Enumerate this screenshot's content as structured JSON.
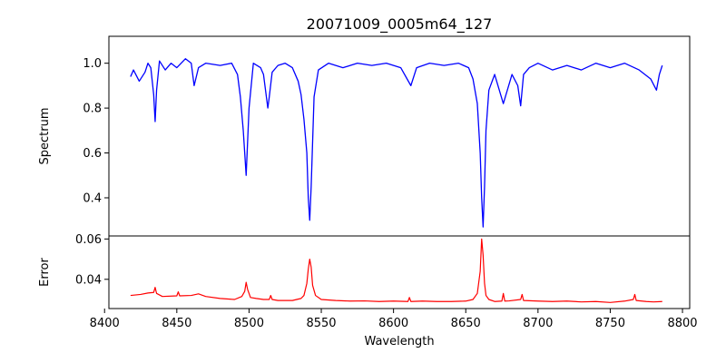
{
  "chart_data": [
    {
      "type": "line",
      "title": "20071009_0005m64_127",
      "xlabel": "",
      "ylabel": "Spectrum",
      "xlim": [
        8403,
        8805
      ],
      "ylim": [
        0.23,
        1.12
      ],
      "yticks": [
        0.4,
        0.6,
        0.8,
        1.0
      ],
      "yticklabels": [
        "0.4",
        "0.6",
        "0.8",
        "1.0"
      ],
      "grid": false,
      "series": [
        {
          "color": "#0000ff",
          "x": [
            8418,
            8420,
            8424,
            8428,
            8430,
            8432,
            8434,
            8435,
            8436,
            8438,
            8442,
            8446,
            8450,
            8456,
            8460,
            8462,
            8465,
            8470,
            8480,
            8488,
            8492,
            8494,
            8496,
            8498,
            8500,
            8503,
            8508,
            8510,
            8513,
            8514,
            8516,
            8520,
            8525,
            8530,
            8534,
            8536,
            8538,
            8540,
            8541,
            8542,
            8543,
            8545,
            8548,
            8555,
            8565,
            8575,
            8585,
            8595,
            8605,
            8612,
            8616,
            8625,
            8635,
            8645,
            8652,
            8655,
            8658,
            8660,
            8661,
            8662,
            8663,
            8664,
            8666,
            8670,
            8676,
            8682,
            8686,
            8688,
            8690,
            8694,
            8700,
            8710,
            8720,
            8730,
            8740,
            8750,
            8760,
            8770,
            8778,
            8782,
            8784,
            8786
          ],
          "values": [
            0.94,
            0.97,
            0.92,
            0.96,
            1.0,
            0.98,
            0.86,
            0.74,
            0.88,
            1.01,
            0.97,
            1.0,
            0.98,
            1.02,
            1.0,
            0.9,
            0.98,
            1.0,
            0.99,
            1.0,
            0.95,
            0.85,
            0.7,
            0.5,
            0.8,
            1.0,
            0.98,
            0.95,
            0.8,
            0.85,
            0.96,
            0.99,
            1.0,
            0.98,
            0.92,
            0.86,
            0.75,
            0.6,
            0.4,
            0.3,
            0.45,
            0.85,
            0.97,
            1.0,
            0.98,
            1.0,
            0.99,
            1.0,
            0.98,
            0.9,
            0.98,
            1.0,
            0.99,
            1.0,
            0.98,
            0.93,
            0.82,
            0.6,
            0.4,
            0.27,
            0.45,
            0.7,
            0.88,
            0.95,
            0.82,
            0.95,
            0.9,
            0.81,
            0.95,
            0.98,
            1.0,
            0.97,
            0.99,
            0.97,
            1.0,
            0.98,
            1.0,
            0.97,
            0.93,
            0.88,
            0.95,
            0.99
          ]
        }
      ]
    },
    {
      "type": "line",
      "title": "",
      "xlabel": "Wavelength",
      "ylabel": "Error",
      "xlim": [
        8403,
        8805
      ],
      "ylim": [
        0.0255,
        0.0615
      ],
      "xticks": [
        8400,
        8450,
        8500,
        8550,
        8600,
        8650,
        8700,
        8750,
        8800
      ],
      "xticklabels": [
        "8400",
        "8450",
        "8500",
        "8550",
        "8600",
        "8650",
        "8700",
        "8750",
        "8800"
      ],
      "yticks": [
        0.04,
        0.06
      ],
      "yticklabels": [
        "0.04",
        "0.06"
      ],
      "grid": false,
      "series": [
        {
          "color": "#ff0000",
          "x": [
            8418,
            8425,
            8430,
            8434,
            8435,
            8436,
            8440,
            8450,
            8451,
            8452,
            8460,
            8465,
            8470,
            8480,
            8490,
            8495,
            8497,
            8498,
            8499,
            8501,
            8505,
            8510,
            8514,
            8515,
            8516,
            8520,
            8530,
            8536,
            8538,
            8540,
            8541,
            8542,
            8543,
            8544,
            8546,
            8550,
            8560,
            8570,
            8580,
            8590,
            8600,
            8610,
            8611,
            8612,
            8620,
            8630,
            8640,
            8650,
            8655,
            8658,
            8660,
            8661,
            8662,
            8663,
            8664,
            8666,
            8670,
            8675,
            8676,
            8677,
            8680,
            8688,
            8689,
            8690,
            8700,
            8710,
            8720,
            8730,
            8740,
            8750,
            8760,
            8766,
            8767,
            8768,
            8775,
            8780,
            8786
          ],
          "values": [
            0.032,
            0.0325,
            0.0332,
            0.0335,
            0.036,
            0.033,
            0.0315,
            0.0318,
            0.0338,
            0.0318,
            0.032,
            0.0328,
            0.0315,
            0.0305,
            0.03,
            0.0315,
            0.034,
            0.0385,
            0.035,
            0.031,
            0.0305,
            0.03,
            0.03,
            0.032,
            0.03,
            0.0295,
            0.0295,
            0.0305,
            0.032,
            0.038,
            0.045,
            0.05,
            0.046,
            0.037,
            0.032,
            0.03,
            0.0295,
            0.0292,
            0.0293,
            0.029,
            0.0292,
            0.029,
            0.031,
            0.029,
            0.0292,
            0.029,
            0.029,
            0.0292,
            0.03,
            0.033,
            0.044,
            0.06,
            0.052,
            0.038,
            0.032,
            0.03,
            0.029,
            0.0292,
            0.033,
            0.0292,
            0.0293,
            0.03,
            0.0325,
            0.0295,
            0.0292,
            0.029,
            0.0292,
            0.0288,
            0.029,
            0.0285,
            0.0292,
            0.03,
            0.0325,
            0.0295,
            0.029,
            0.0288,
            0.029
          ]
        }
      ]
    }
  ]
}
